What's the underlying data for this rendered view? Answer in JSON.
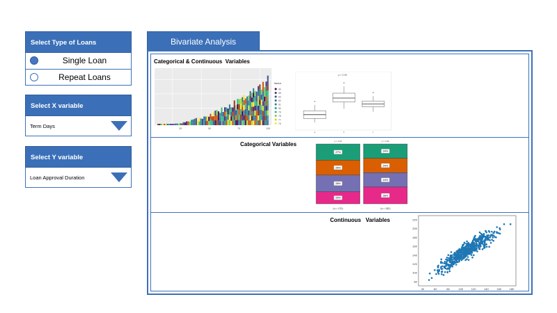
{
  "loan_type_panel": {
    "header": "Select Type of Loans",
    "options": [
      {
        "label": "Single Loan",
        "selected": true
      },
      {
        "label": "Repeat Loans",
        "selected": false
      }
    ]
  },
  "x_variable_panel": {
    "header": "Select X variable",
    "value": "Term Days"
  },
  "y_variable_panel": {
    "header": "Select Y  variable",
    "value": "Loan Approval Duration"
  },
  "analysis": {
    "tab_label": "Bivariate Analysis",
    "sections": {
      "cat_cont_title": "Categorical & Continuous  Variables",
      "categorical_title": "Categorical Variables",
      "continuous_title": "Continuous   Variables"
    }
  },
  "colors": {
    "accent": "#3b70b8",
    "bar_teal": "#1b9e77",
    "bar_orange": "#d95f02",
    "bar_purple": "#7570b3",
    "bar_pink": "#e7298a",
    "scatter": "#1f77b4"
  },
  "chart_data": [
    {
      "type": "bar",
      "title": "",
      "legend_title": "factor",
      "legend_placement": "right",
      "xticks": [
        "25",
        "50",
        "75",
        "100"
      ],
      "legend_entries": [
        "84",
        "85",
        "83",
        "82",
        "81",
        "80",
        "79",
        "78",
        "77",
        "76"
      ],
      "grid": true
    },
    {
      "type": "boxplot",
      "title": "",
      "annotation": "p < 0.05",
      "categories": [
        "a",
        "b",
        "c"
      ],
      "boxes": [
        {
          "q1": 14,
          "median": 18,
          "q3": 22,
          "low": 10,
          "high": 28
        },
        {
          "q1": 31,
          "median": 35,
          "q3": 40,
          "low": 24,
          "high": 47
        },
        {
          "q1": 26,
          "median": 29,
          "q3": 32,
          "low": 21,
          "high": 37
        }
      ],
      "ylim": [
        5,
        55
      ]
    },
    {
      "type": "bar",
      "stacked": true,
      "categories": [
        "(n = 170)",
        "(n = 182)"
      ],
      "series": [
        {
          "values": [
            27,
            24
          ]
        },
        {
          "values": [
            25,
            24
          ]
        },
        {
          "values": [
            28,
            24
          ]
        },
        {
          "values": [
            20,
            28
          ]
        }
      ],
      "data_labels": [
        [
          "27%",
          "25%",
          "28%",
          "20%"
        ],
        [
          "24%",
          "24%",
          "24%",
          "28%"
        ]
      ],
      "top_labels": [
        "p = 0.96",
        "p = 0.96"
      ]
    },
    {
      "type": "scatter",
      "title": "",
      "xlim": [
        40,
        180
      ],
      "ylim": [
        80,
        220
      ],
      "xticks": [
        40,
        60,
        80,
        100,
        120,
        140,
        160,
        180
      ],
      "yticks": [
        80,
        100,
        120,
        140,
        160,
        180,
        200,
        220
      ],
      "trend": {
        "slope": 0.95,
        "intercept": 45,
        "spread": 9
      },
      "points": 600
    }
  ]
}
